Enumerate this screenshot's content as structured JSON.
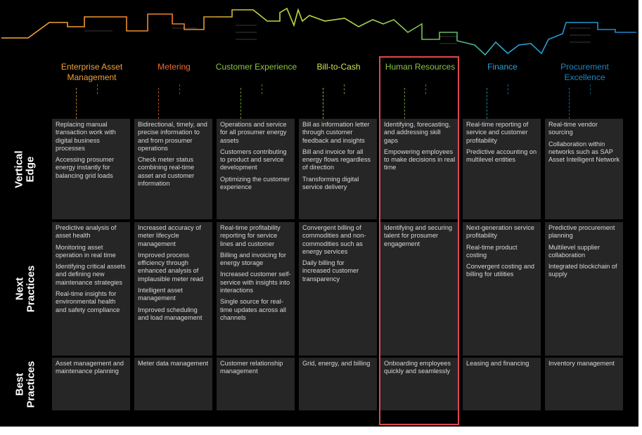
{
  "columns": [
    {
      "id": "eam",
      "title": "Enterprise Asset Management",
      "color": "#f0a23a"
    },
    {
      "id": "metering",
      "title": "Metering",
      "color": "#ee6c32"
    },
    {
      "id": "cx",
      "title": "Customer Experience",
      "color": "#8bc63f"
    },
    {
      "id": "b2c",
      "title": "Bill-to-Cash",
      "color": "#d4e157"
    },
    {
      "id": "hr",
      "title": "Human Resources",
      "color": "#8bc34a"
    },
    {
      "id": "finance",
      "title": "Finance",
      "color": "#2aa6d8"
    },
    {
      "id": "procurement",
      "title": "Procurement Excellence",
      "color": "#1e88c7"
    }
  ],
  "rows": [
    {
      "id": "vertical",
      "label_line1": "Vertical",
      "label_line2": "Edge"
    },
    {
      "id": "next",
      "label_line1": "Next",
      "label_line2": "Practices"
    },
    {
      "id": "best",
      "label_line1": "Best",
      "label_line2": "Practices"
    }
  ],
  "cells": {
    "vertical": [
      [
        "Replacing manual transaction work with digital business processes",
        "Accessing prosumer energy instantly for balancing grid loads"
      ],
      [
        "Bidirectional, timely, and precise information to and from prosumer operations",
        "Check meter status combining real-time asset and customer information"
      ],
      [
        "Operations and service for all prosumer energy assets",
        "Customers contributing to product and service development",
        "Optimizing the customer experience"
      ],
      [
        "Bill as information letter through customer feedback and insights",
        "Bill and invoice for all energy flows regardless of direction",
        "Transforming digital service delivery"
      ],
      [
        "Identifying, forecasting, and addressing skill gaps",
        "Empowering employees to make decisions in real time"
      ],
      [
        "Real-time reporting of service and customer profitability",
        "Predictive accounting on multilevel entities"
      ],
      [
        "Real-time vendor sourcing",
        "Collaboration within networks such as SAP Asset Intelligent Network"
      ]
    ],
    "next": [
      [
        "Predictive analysis of asset health",
        "Monitoring asset operation in real time",
        "Identifying critical assets and defining new maintenance strategies",
        "Real-time insights for environmental health and safety compliance"
      ],
      [
        "Increased accuracy of meter lifecycle management",
        "Improved process efficiency through enhanced analysis of implausible meter read",
        "Intelligent asset management",
        "Improved scheduling and load management"
      ],
      [
        "Real-time profitability reporting for service lines and customer",
        "Billing and invoicing for energy storage",
        "Increased customer self-service with insights into interactions",
        "Single source for real-time updates across all channels"
      ],
      [
        "Convergent billing of commodities and non-commodities such as energy services",
        "Daily billing for increased customer transparency"
      ],
      [
        "Identifying and securing talent for prosumer engagement"
      ],
      [
        "Next-generation service profitability",
        "Real-time product costing",
        "Convergent costing and billing for utilities"
      ],
      [
        "Predictive procurement planning",
        "Multilevel supplier collaboration",
        "Integrated blockchain of supply"
      ]
    ],
    "best": [
      [
        "Asset management and maintenance planning"
      ],
      [
        "Meter data management"
      ],
      [
        "Customer relationship management"
      ],
      [
        "Grid, energy, and billing"
      ],
      [
        "Onboarding employees quickly and seamlessly"
      ],
      [
        "Leasing and financing"
      ],
      [
        "Inventory management"
      ]
    ]
  },
  "highlight": {
    "column": "hr",
    "color": "#e0464d"
  }
}
